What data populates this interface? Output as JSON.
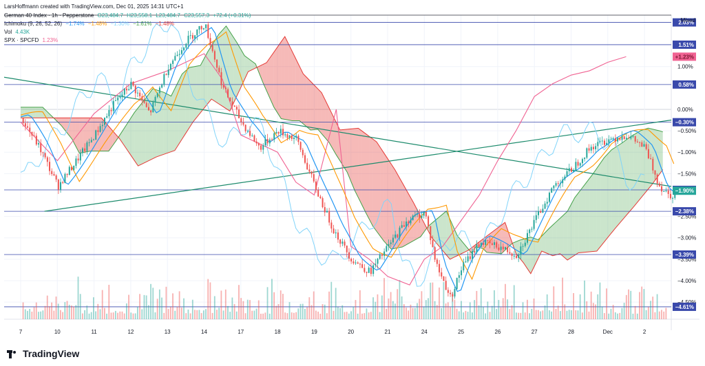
{
  "credit": "LarsHoffmann created with TradingView.com, Dec 01, 2025 14:31 UTC+1",
  "legend": {
    "main": {
      "name": "German 40 Index · 1h · Pepperstone",
      "o": "O23,484.7",
      "h": "H23,558.1",
      "l": "L23,484.7",
      "c": "C23,557.3",
      "chg": "+72.4 (+0.31%)"
    },
    "ichimoku": {
      "name": "Ichimoku (9, 26, 52, 26)",
      "v1": "−1.74%",
      "v2": "−1.48%",
      "v3": "−1.30%",
      "v4": "−1.61%",
      "v5": "−1.48%"
    },
    "vol": {
      "name": "Vol",
      "value": "4.43K"
    },
    "spx": {
      "name": "SPX · SPCFD",
      "value": "1.23%"
    }
  },
  "scale_mode": "Mixed",
  "brand": "TradingView",
  "colors": {
    "candle_up": "#26a69a",
    "candle_down": "#ef5350",
    "baseline": "#2196f3",
    "conversion": "#2962ff",
    "lagging": "#81d4fa",
    "cloud_up": "#43a047",
    "cloud_down": "#e53935",
    "spx": "#f06292",
    "trendline": "#1b8a6b",
    "hline": "#3949ab",
    "accent_orange": "#ff9800"
  },
  "chart_data": {
    "type": "line",
    "title": "German 40 Index · 1h · Pepperstone",
    "x_labels": [
      "7",
      "10",
      "11",
      "12",
      "13",
      "14",
      "17",
      "18",
      "19",
      "20",
      "21",
      "24",
      "25",
      "26",
      "27",
      "28",
      "Dec",
      "2"
    ],
    "y_ticks": [
      "1.00%",
      "0.00%",
      "−0.50%",
      "−1.00%",
      "−1.50%",
      "−2.50%",
      "−3.00%",
      "−3.50%",
      "−4.00%",
      "−4.50%"
    ],
    "ylim": [
      -4.9,
      2.2
    ],
    "horizontal_levels": [
      {
        "label": "2.03%",
        "value": 2.03
      },
      {
        "label": "1.51%",
        "value": 1.51
      },
      {
        "label": "0.58%",
        "value": 0.58
      },
      {
        "label": "−0.30%",
        "value": -0.3
      },
      {
        "label": "−1.88%",
        "value": -1.88
      },
      {
        "label": "−2.38%",
        "value": -2.38
      },
      {
        "label": "−3.39%",
        "value": -3.39
      },
      {
        "label": "−4.61%",
        "value": -4.61
      }
    ],
    "price_badges": [
      {
        "label": "+1.23%",
        "value": 1.23,
        "color": "#f06292"
      },
      {
        "label": "−1.90%",
        "value": -1.9,
        "color": "#26a69a"
      }
    ],
    "series": [
      {
        "name": "German 40 Index",
        "points": [
          [
            0,
            -0.2
          ],
          [
            0.5,
            -0.9
          ],
          [
            1,
            -1.8
          ],
          [
            1.5,
            -1.2
          ],
          [
            2,
            -0.6
          ],
          [
            2.5,
            0.1
          ],
          [
            3,
            0.6
          ],
          [
            3.5,
            -0.1
          ],
          [
            4,
            1.0
          ],
          [
            4.5,
            1.6
          ],
          [
            5,
            2.0
          ],
          [
            5.5,
            0.5
          ],
          [
            6,
            -0.3
          ],
          [
            6.5,
            -0.9
          ],
          [
            7,
            -0.5
          ],
          [
            7.5,
            -0.7
          ],
          [
            8,
            -1.8
          ],
          [
            8.5,
            -2.8
          ],
          [
            9,
            -3.5
          ],
          [
            9.5,
            -3.8
          ],
          [
            10,
            -3.2
          ],
          [
            10.5,
            -2.6
          ],
          [
            11,
            -2.4
          ],
          [
            11.3,
            -3.6
          ],
          [
            11.7,
            -4.4
          ],
          [
            12,
            -3.7
          ],
          [
            12.5,
            -3.1
          ],
          [
            13,
            -3.2
          ],
          [
            13.5,
            -3.4
          ],
          [
            14,
            -2.6
          ],
          [
            14.5,
            -1.8
          ],
          [
            15,
            -1.4
          ],
          [
            15.5,
            -0.9
          ],
          [
            16,
            -0.7
          ],
          [
            16.5,
            -0.6
          ],
          [
            17,
            -0.9
          ],
          [
            17.4,
            -1.8
          ],
          [
            17.7,
            -2.0
          ],
          [
            18,
            -1.9
          ]
        ]
      },
      {
        "name": "SPX · SPCFD",
        "points": [
          [
            0,
            -0.3
          ],
          [
            1,
            -1.2
          ],
          [
            2,
            -0.1
          ],
          [
            3,
            0.6
          ],
          [
            4,
            0.9
          ],
          [
            5,
            1.3
          ],
          [
            5.5,
            0.7
          ],
          [
            6,
            -0.6
          ],
          [
            6.5,
            -0.8
          ],
          [
            7,
            -1.0
          ],
          [
            7.5,
            -1.7
          ],
          [
            8,
            -2.0
          ],
          [
            8.6,
            0.0
          ],
          [
            9,
            -3.2
          ],
          [
            9.5,
            -3.5
          ],
          [
            10,
            -3.9
          ],
          [
            10.6,
            -4.1
          ],
          [
            11,
            -3.5
          ],
          [
            11.5,
            -3.2
          ],
          [
            12,
            -2.6
          ],
          [
            12.5,
            -2.0
          ],
          [
            13,
            -1.2
          ],
          [
            13.5,
            -0.5
          ],
          [
            14,
            0.3
          ],
          [
            14.5,
            0.6
          ],
          [
            15,
            0.8
          ],
          [
            15.5,
            0.9
          ],
          [
            16,
            1.1
          ],
          [
            16.5,
            1.23
          ]
        ]
      }
    ]
  }
}
